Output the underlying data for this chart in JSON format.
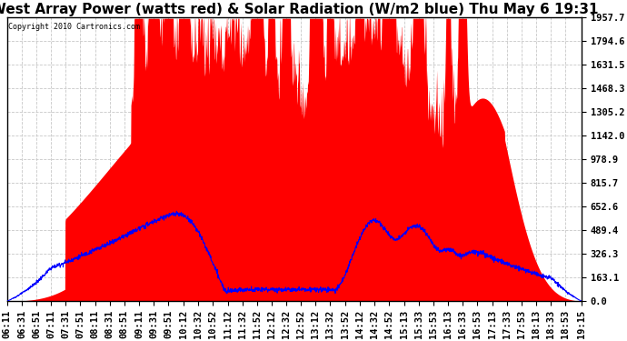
{
  "title": "West Array Power (watts red) & Solar Radiation (W/m2 blue) Thu May 6 19:31",
  "copyright": "Copyright 2010 Cartronics.com",
  "y_max": 1957.7,
  "y_ticks": [
    0.0,
    163.1,
    326.3,
    489.4,
    652.6,
    815.7,
    978.9,
    1142.0,
    1305.2,
    1468.3,
    1631.5,
    1794.6,
    1957.7
  ],
  "x_labels": [
    "06:11",
    "06:31",
    "06:51",
    "07:11",
    "07:31",
    "07:51",
    "08:11",
    "08:31",
    "08:51",
    "09:11",
    "09:31",
    "09:51",
    "10:12",
    "10:32",
    "10:52",
    "11:12",
    "11:32",
    "11:52",
    "12:12",
    "12:32",
    "12:52",
    "13:12",
    "13:32",
    "13:52",
    "14:12",
    "14:32",
    "14:52",
    "15:13",
    "15:33",
    "15:53",
    "16:13",
    "16:33",
    "16:53",
    "17:13",
    "17:33",
    "17:53",
    "18:13",
    "18:33",
    "18:53",
    "19:15"
  ],
  "background_color": "#ffffff",
  "plot_bg_color": "#ffffff",
  "grid_color": "#c8c8c8",
  "red_color": "#ff0000",
  "blue_color": "#0000ff",
  "title_fontsize": 11,
  "tick_fontsize": 7.5
}
